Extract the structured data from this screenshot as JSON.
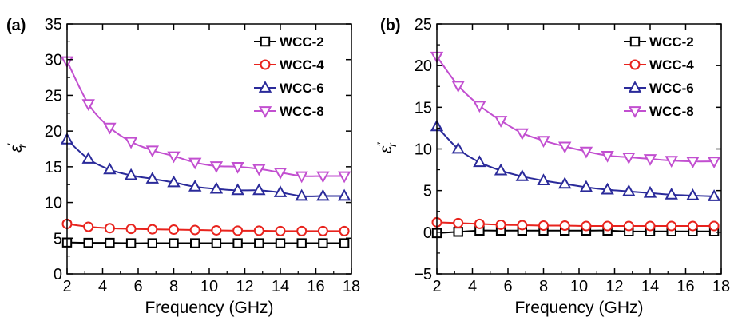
{
  "chart_data": [
    {
      "type": "line",
      "panel_label": "(a)",
      "xlabel": "Frequency (GHz)",
      "ylabel": "ε′r",
      "ylabel_main": "ε",
      "ylabel_sup": "′",
      "ylabel_sub": "r",
      "xlim": [
        2,
        18
      ],
      "ylim": [
        0,
        35
      ],
      "xticks": [
        2,
        4,
        6,
        8,
        10,
        12,
        14,
        16,
        18
      ],
      "yticks": [
        0,
        5,
        10,
        15,
        20,
        25,
        30,
        35
      ],
      "grid": false,
      "legend_position": "top-right",
      "x": [
        2.0,
        3.2,
        4.4,
        5.6,
        6.8,
        8.0,
        9.2,
        10.4,
        11.6,
        12.8,
        14.0,
        15.2,
        16.4,
        17.6
      ],
      "series": [
        {
          "name": "WCC-2",
          "marker": "square",
          "color": "#000000",
          "values": [
            4.4,
            4.35,
            4.35,
            4.3,
            4.3,
            4.3,
            4.3,
            4.3,
            4.3,
            4.3,
            4.3,
            4.3,
            4.3,
            4.3
          ]
        },
        {
          "name": "WCC-4",
          "marker": "circle",
          "color": "#e8231d",
          "values": [
            7.0,
            6.6,
            6.4,
            6.3,
            6.25,
            6.2,
            6.15,
            6.1,
            6.05,
            6.05,
            6.0,
            6.0,
            6.0,
            6.0
          ]
        },
        {
          "name": "WCC-6",
          "marker": "triangle-up",
          "color": "#2a2a9a",
          "values": [
            18.8,
            16.1,
            14.6,
            13.8,
            13.3,
            12.8,
            12.2,
            11.9,
            11.7,
            11.7,
            11.4,
            10.9,
            10.9,
            10.9
          ]
        },
        {
          "name": "WCC-8",
          "marker": "triangle-down",
          "color": "#c24fd0",
          "values": [
            29.8,
            23.8,
            20.5,
            18.5,
            17.3,
            16.5,
            15.6,
            15.1,
            15.0,
            14.7,
            14.2,
            13.7,
            13.7,
            13.7
          ]
        }
      ]
    },
    {
      "type": "line",
      "panel_label": "(b)",
      "xlabel": "Frequency (GHz)",
      "ylabel": "ε″r",
      "ylabel_main": "ε",
      "ylabel_sup": "″",
      "ylabel_sub": "r",
      "xlim": [
        2,
        18
      ],
      "ylim": [
        -5,
        25
      ],
      "xticks": [
        2,
        4,
        6,
        8,
        10,
        12,
        14,
        16,
        18
      ],
      "yticks": [
        -5,
        0,
        5,
        10,
        15,
        20,
        25
      ],
      "ytick_labels": [
        "−5",
        "0",
        "5",
        "10",
        "15",
        "20",
        "25"
      ],
      "grid": false,
      "legend_position": "top-right",
      "x": [
        2.0,
        3.2,
        4.4,
        5.6,
        6.8,
        8.0,
        9.2,
        10.4,
        11.6,
        12.8,
        14.0,
        15.2,
        16.4,
        17.6
      ],
      "series": [
        {
          "name": "WCC-2",
          "marker": "square",
          "color": "#000000",
          "values": [
            -0.1,
            0.05,
            0.2,
            0.2,
            0.2,
            0.2,
            0.2,
            0.2,
            0.2,
            0.1,
            0.1,
            0.1,
            0.1,
            0.1
          ]
        },
        {
          "name": "WCC-4",
          "marker": "circle",
          "color": "#e8231d",
          "values": [
            1.2,
            1.1,
            1.0,
            0.9,
            0.85,
            0.8,
            0.8,
            0.75,
            0.75,
            0.75,
            0.75,
            0.75,
            0.75,
            0.75
          ]
        },
        {
          "name": "WCC-6",
          "marker": "triangle-up",
          "color": "#2a2a9a",
          "values": [
            12.7,
            10.0,
            8.4,
            7.4,
            6.7,
            6.2,
            5.8,
            5.4,
            5.1,
            4.9,
            4.7,
            4.5,
            4.4,
            4.3
          ]
        },
        {
          "name": "WCC-8",
          "marker": "triangle-down",
          "color": "#c24fd0",
          "values": [
            21.1,
            17.6,
            15.2,
            13.4,
            11.9,
            11.0,
            10.3,
            9.7,
            9.2,
            9.0,
            8.8,
            8.6,
            8.5,
            8.5
          ]
        }
      ]
    }
  ]
}
